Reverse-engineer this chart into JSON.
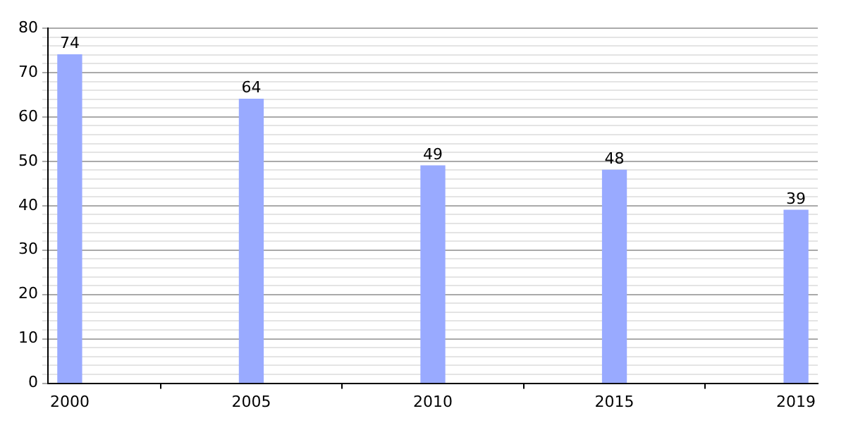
{
  "chart_data": {
    "type": "bar",
    "categories": [
      "2000",
      "2005",
      "2010",
      "2015",
      "2019"
    ],
    "values": [
      74,
      64,
      49,
      48,
      39
    ],
    "color": "#99aaff",
    "ylim": [
      0,
      80
    ],
    "yticks": [
      0,
      {
        "value": 2,
        "label": null
      },
      {
        "value": 4,
        "label": null
      },
      {
        "value": 6,
        "label": null
      },
      {
        "value": 8,
        "label": null
      },
      10,
      {
        "value": 12,
        "label": null
      },
      {
        "value": 14,
        "label": null
      },
      {
        "value": 16,
        "label": null
      },
      {
        "value": 18,
        "label": null
      },
      20,
      {
        "value": 22,
        "label": null
      },
      {
        "value": 24,
        "label": null
      },
      {
        "value": 26,
        "label": null
      },
      {
        "value": 28,
        "label": null
      },
      30,
      {
        "value": 32,
        "label": null
      },
      {
        "value": 34,
        "label": null
      },
      {
        "value": 36,
        "label": null
      },
      {
        "value": 38,
        "label": null
      },
      40,
      {
        "value": 42,
        "label": null
      },
      {
        "value": 44,
        "label": null
      },
      {
        "value": 46,
        "label": null
      },
      {
        "value": 48,
        "label": null
      },
      50,
      {
        "value": 52,
        "label": null
      },
      {
        "value": 54,
        "label": null
      },
      {
        "value": 56,
        "label": null
      },
      {
        "value": 58,
        "label": null
      },
      60,
      {
        "value": 62,
        "label": null
      },
      {
        "value": 64,
        "label": null
      },
      {
        "value": 66,
        "label": null
      },
      {
        "value": 68,
        "label": null
      },
      70,
      {
        "value": 72,
        "label": null
      },
      {
        "value": 74,
        "label": null
      },
      {
        "value": 76,
        "label": null
      },
      {
        "value": 78,
        "label": null
      },
      80
    ],
    "grid": "y",
    "data_labels": true
  }
}
